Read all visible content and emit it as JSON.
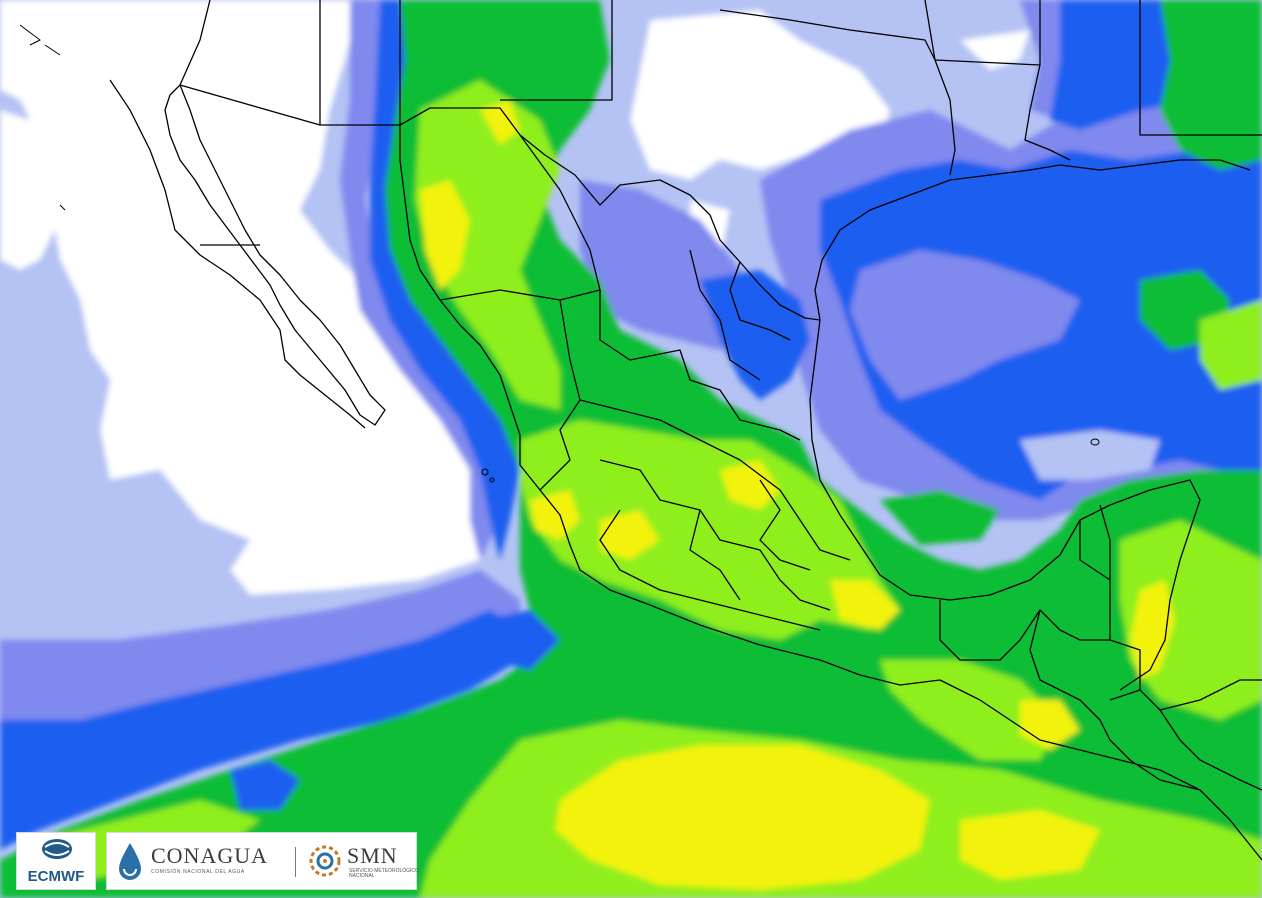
{
  "colors": {
    "white": "#ffffff",
    "pale_blue": "#b4c2f4",
    "lavender": "#7f89ee",
    "blue": "#1f5ef0",
    "dark_green": "#0fbd35",
    "light_green": "#8eef1f",
    "yellow": "#f2f20c",
    "border": "#000000"
  },
  "logos": {
    "ecmwf": {
      "name": "ecmwf-logo",
      "text": "ECMWF"
    },
    "conagua": {
      "name": "conagua-logo",
      "text": "CONAGUA",
      "subtitle": "COMISIÓN NACIONAL DEL AGUA"
    },
    "smn": {
      "name": "smn-logo",
      "text": "SMN",
      "subtitle": "SERVICIO METEOROLÓGICO NACIONAL"
    }
  }
}
